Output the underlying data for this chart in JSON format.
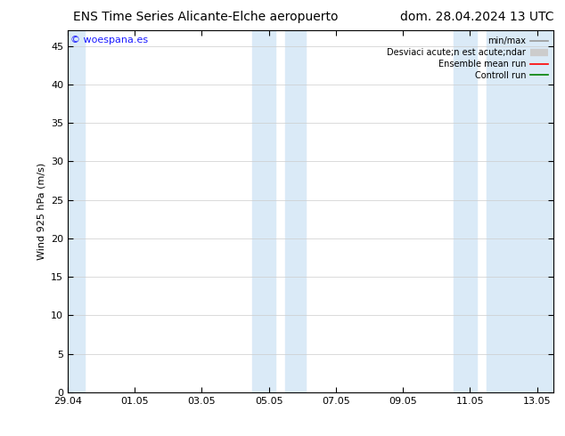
{
  "title_left": "ENS Time Series Alicante-Elche aeropuerto",
  "title_right": "dom. 28.04.2024 13 UTC",
  "ylabel": "Wind 925 hPa (m/s)",
  "watermark": "© woespana.es",
  "background_color": "#ffffff",
  "plot_bg_color": "#ffffff",
  "shade_color": "#daeaf7",
  "ylim": [
    0,
    47
  ],
  "yticks": [
    0,
    5,
    10,
    15,
    20,
    25,
    30,
    35,
    40,
    45
  ],
  "xtick_labels": [
    "29.04",
    "01.05",
    "03.05",
    "05.05",
    "07.05",
    "09.05",
    "11.05",
    "13.05"
  ],
  "legend_labels": [
    "min/max",
    "Desviaci acute;n est acute;ndar",
    "Ensemble mean run",
    "Controll run"
  ],
  "legend_colors": [
    "#999999",
    "#cccccc",
    "#ff0000",
    "#008000"
  ],
  "watermark_color": "#1a1aff",
  "title_fontsize": 10,
  "axis_fontsize": 8,
  "tick_fontsize": 8,
  "xlim": [
    0,
    14.5
  ],
  "xtick_positions": [
    0,
    2,
    4,
    6,
    8,
    10,
    12,
    14
  ],
  "shade_bands": [
    [
      0.0,
      0.5
    ],
    [
      5.5,
      6.2
    ],
    [
      6.5,
      7.1
    ],
    [
      11.5,
      12.2
    ],
    [
      12.5,
      14.5
    ]
  ]
}
